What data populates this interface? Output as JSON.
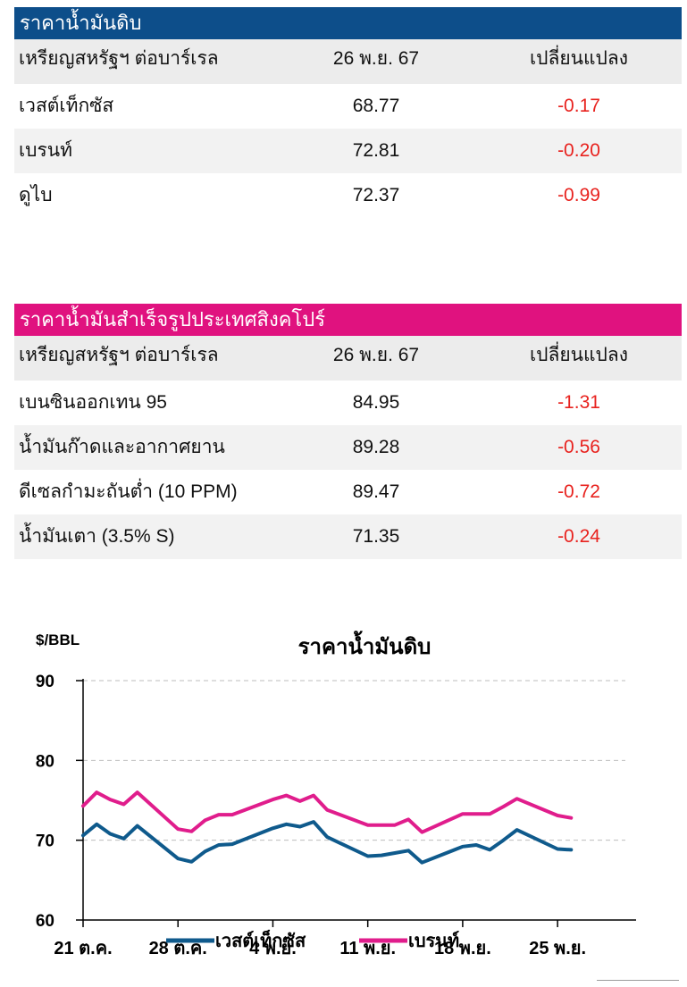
{
  "crude_table": {
    "title": "ราคาน้ำมันดิบ",
    "header": {
      "unit": "เหรียญสหรัฐฯ ต่อบาร์เรล",
      "date": "26 พ.ย. 67",
      "change": "เปลี่ยนแปลง"
    },
    "rows": [
      {
        "name": "เวสต์เท็กซัส",
        "price": "68.77",
        "change": "-0.17"
      },
      {
        "name": "เบรนท์",
        "price": "72.81",
        "change": "-0.20"
      },
      {
        "name": "ดูไบ",
        "price": "72.37",
        "change": "-0.99"
      }
    ]
  },
  "refined_table": {
    "title": "ราคาน้ำมันสำเร็จรูปประเทศสิงคโปร์",
    "header": {
      "unit": "เหรียญสหรัฐฯ ต่อบาร์เรล",
      "date": "26 พ.ย. 67",
      "change": "เปลี่ยนแปลง"
    },
    "rows": [
      {
        "name": "เบนซินออกเทน 95",
        "price": "84.95",
        "change": "-1.31"
      },
      {
        "name": "น้ำมันก๊าดและอากาศยาน",
        "price": "89.28",
        "change": "-0.56"
      },
      {
        "name": "ดีเซลกำมะถันต่ำ (10 PPM)",
        "price": "89.47",
        "change": "-0.72"
      },
      {
        "name": "น้ำมันเตา (3.5% S)",
        "price": "71.35",
        "change": "-0.24"
      }
    ]
  },
  "colors": {
    "crude_header": "#0d4e8a",
    "refined_header": "#e0127f",
    "negative": "#e8221e",
    "wti_line": "#0f5a8c",
    "brent_line": "#e01d8c"
  },
  "chart_data": {
    "type": "line",
    "title": "ราคาน้ำมันดิบ",
    "ylabel": "$/BBL",
    "xlabel": "",
    "ylim": [
      60,
      90
    ],
    "yticks": [
      "60",
      "70",
      "80",
      "90"
    ],
    "x_tick_labels": [
      "21 ต.ค.",
      "28 ต.ค.",
      "4 พ.ย.",
      "11 พ.ย.",
      "18 พ.ย.",
      "25 พ.ย."
    ],
    "x": [
      "21 ต.ค.",
      "22 ต.ค.",
      "23 ต.ค.",
      "24 ต.ค.",
      "25 ต.ค.",
      "28 ต.ค.",
      "29 ต.ค.",
      "30 ต.ค.",
      "31 ต.ค.",
      "1 พ.ย.",
      "4 พ.ย.",
      "5 พ.ย.",
      "6 พ.ย.",
      "7 พ.ย.",
      "8 พ.ย.",
      "11 พ.ย.",
      "12 พ.ย.",
      "13 พ.ย.",
      "14 พ.ย.",
      "15 พ.ย.",
      "18 พ.ย.",
      "19 พ.ย.",
      "20 พ.ย.",
      "21 พ.ย.",
      "22 พ.ย.",
      "25 พ.ย.",
      "26 พ.ย."
    ],
    "x_index": [
      0,
      1,
      2,
      3,
      4,
      7,
      8,
      9,
      10,
      11,
      14,
      15,
      16,
      17,
      18,
      21,
      22,
      23,
      24,
      25,
      28,
      29,
      30,
      31,
      32,
      35,
      36
    ],
    "grid": true,
    "legend": "bottom",
    "series": [
      {
        "name": "เวสต์เท็กซัส",
        "values": [
          70.6,
          72.0,
          70.8,
          70.2,
          71.8,
          67.7,
          67.3,
          68.6,
          69.4,
          69.5,
          71.5,
          72.0,
          71.7,
          72.3,
          70.4,
          68.0,
          68.1,
          68.4,
          68.7,
          67.2,
          69.2,
          69.4,
          68.8,
          70.0,
          71.3,
          68.9,
          68.8
        ]
      },
      {
        "name": "เบรนท์",
        "values": [
          74.3,
          76.0,
          75.1,
          74.5,
          76.0,
          71.4,
          71.1,
          72.5,
          73.2,
          73.2,
          75.1,
          75.6,
          74.9,
          75.6,
          73.8,
          71.9,
          71.9,
          71.9,
          72.6,
          71.0,
          73.3,
          73.3,
          73.3,
          74.2,
          75.2,
          73.1,
          72.8
        ]
      }
    ]
  }
}
